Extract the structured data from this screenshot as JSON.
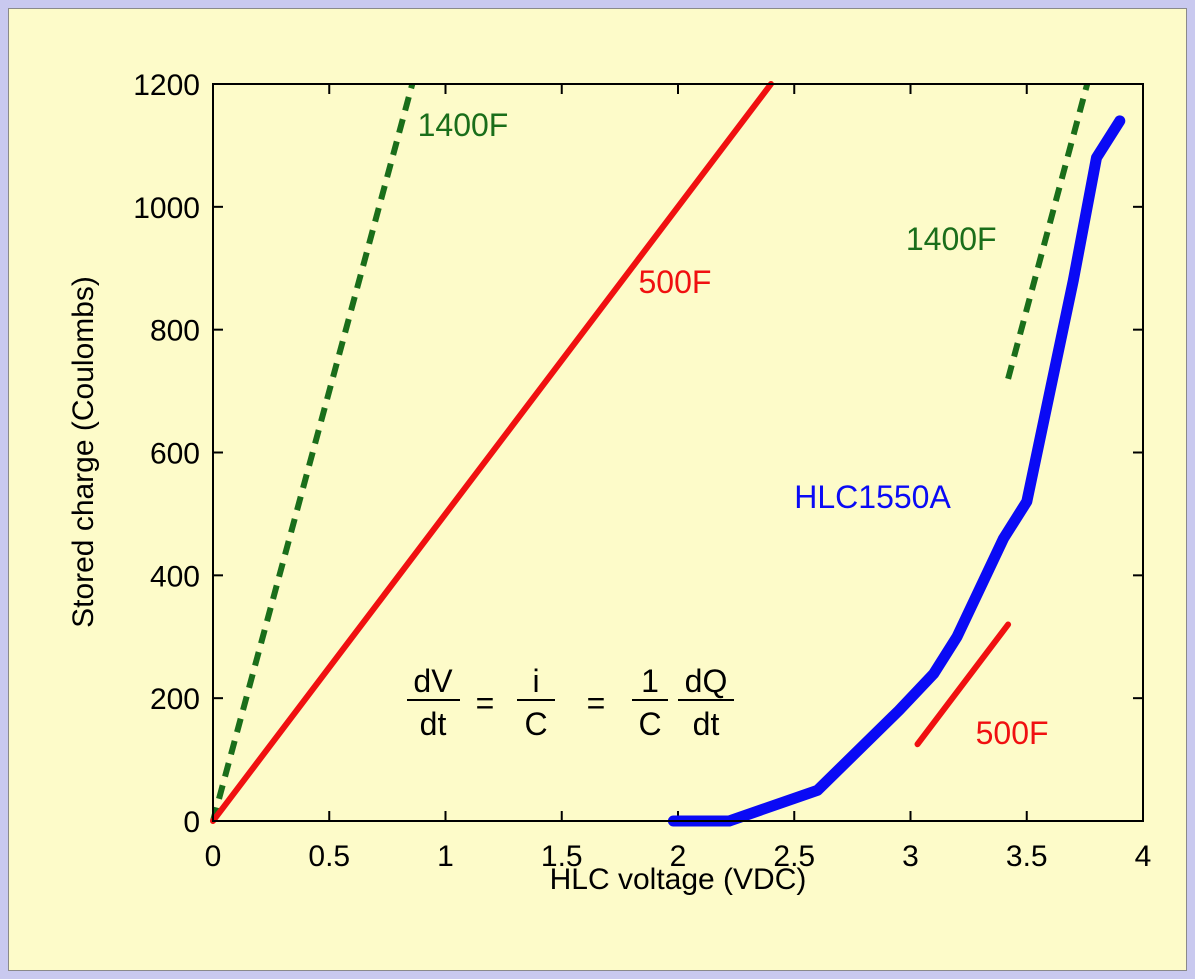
{
  "chart_data": {
    "type": "line",
    "xlabel": "HLC voltage (VDC)",
    "ylabel": "Stored charge (Coulombs)",
    "xlim": [
      0,
      4
    ],
    "ylim": [
      0,
      1200
    ],
    "xticks": [
      0,
      0.5,
      1,
      1.5,
      2,
      2.5,
      3,
      3.5,
      4
    ],
    "xtick_labels": [
      "0",
      "0.5",
      "1",
      "1.5",
      "2",
      "2.5",
      "3",
      "3.5",
      "4"
    ],
    "yticks": [
      0,
      200,
      400,
      600,
      800,
      1000,
      1200
    ],
    "ytick_labels": [
      "0",
      "200",
      "400",
      "600",
      "800",
      "1000",
      "1200"
    ],
    "grid": false,
    "series": [
      {
        "name": "1400F",
        "color": "#1a6e1a",
        "dashed": true,
        "width": 6,
        "x": [
          0.0,
          0.857
        ],
        "y": [
          0,
          1200
        ]
      },
      {
        "name": "500F",
        "color": "#f01010",
        "dashed": false,
        "width": 6,
        "x": [
          0.0,
          2.4
        ],
        "y": [
          0,
          1200
        ]
      },
      {
        "name": "HLC1550A",
        "color": "#0a0af5",
        "dashed": false,
        "width": 11,
        "x": [
          1.98,
          2.22,
          2.6,
          2.95,
          3.1,
          3.2,
          3.3,
          3.4,
          3.5,
          3.6,
          3.7,
          3.8,
          3.9
        ],
        "y": [
          0,
          0,
          50,
          180,
          240,
          300,
          380,
          460,
          520,
          700,
          880,
          1080,
          1140
        ]
      },
      {
        "name": "1400F",
        "color": "#1a6e1a",
        "dashed": true,
        "width": 6,
        "x": [
          3.42,
          3.76
        ],
        "y": [
          720,
          1200
        ]
      },
      {
        "name": "500F",
        "color": "#f01010",
        "dashed": false,
        "width": 6,
        "x": [
          3.03,
          3.42
        ],
        "y": [
          125,
          320
        ]
      }
    ],
    "annotations": [
      {
        "text": "1400F",
        "x": 0.88,
        "y": 1115,
        "color": "#1a6e1a"
      },
      {
        "text": "500F",
        "x": 1.83,
        "y": 860,
        "color": "#f01010"
      },
      {
        "text": "1400F",
        "x": 2.98,
        "y": 930,
        "color": "#1a6e1a"
      },
      {
        "text": "HLC1550A",
        "x": 2.5,
        "y": 510,
        "color": "#0a0af5"
      },
      {
        "text": "500F",
        "x": 3.28,
        "y": 125,
        "color": "#f01010"
      }
    ],
    "equation": {
      "frac1_num": "dV",
      "frac1_den": "dt",
      "eq1": "=",
      "frac2_num": "i",
      "frac2_den": "C",
      "eq2": "=",
      "frac3_num": "1",
      "frac3_den": "C",
      "frac4_num": "dQ",
      "frac4_den": "dt"
    }
  }
}
